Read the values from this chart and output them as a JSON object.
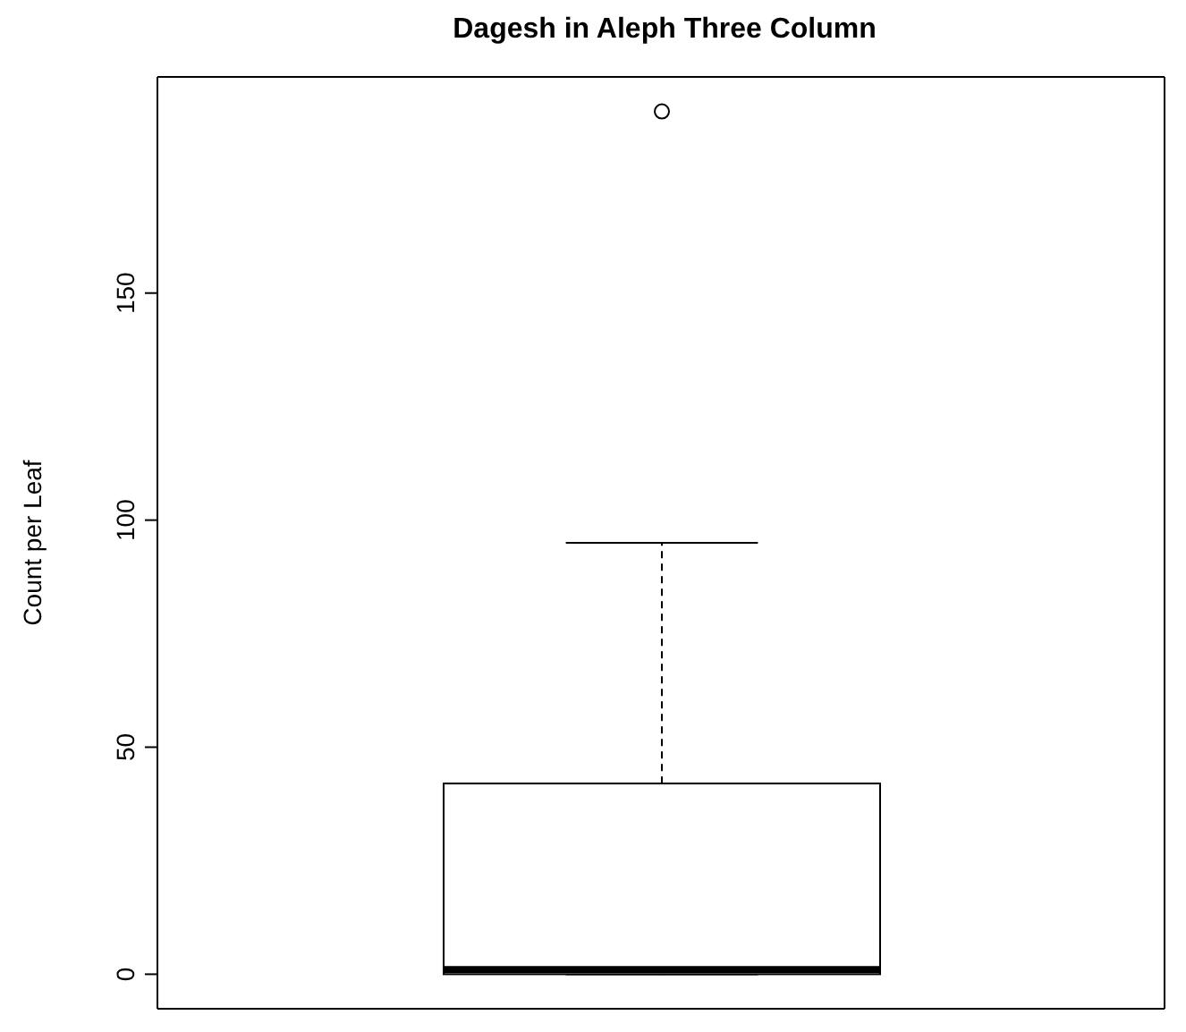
{
  "chart_data": {
    "type": "box",
    "title": "Dagesh in Aleph  Three Column",
    "ylabel": "Count per Leaf",
    "categories": [
      null
    ],
    "boxes": [
      {
        "low": 0,
        "q1": 0,
        "median": 1,
        "q3": 42,
        "high": 95,
        "outliers": [
          190
        ]
      }
    ],
    "ylim": [
      -7.6,
      197.6
    ],
    "yticks": [
      0,
      50,
      100,
      150
    ]
  }
}
